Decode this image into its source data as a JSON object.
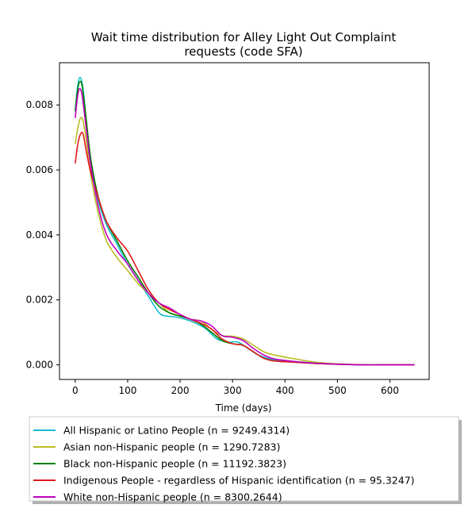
{
  "chart_data": {
    "type": "line",
    "title_lines": [
      "Wait time distribution  for Alley Light Out Complaint",
      "requests (code SFA)"
    ],
    "xlabel": "Time (days)",
    "ylabel": "",
    "xlim": [
      -30,
      675
    ],
    "ylim": [
      -0.00045,
      0.0093
    ],
    "x_ticks": [
      0,
      100,
      200,
      300,
      400,
      500,
      600
    ],
    "x_tick_labels": [
      "0",
      "100",
      "200",
      "300",
      "400",
      "500",
      "600"
    ],
    "y_ticks": [
      0.0,
      0.002,
      0.004,
      0.006,
      0.008
    ],
    "y_tick_labels": [
      "0.000",
      "0.002",
      "0.004",
      "0.006",
      "0.008"
    ],
    "grid": false,
    "legend_position": "below plot",
    "series": [
      {
        "name": "All Hispanic or Latino People (n = 9249.4314)",
        "color": "#17becf",
        "points": [
          [
            0,
            0.0078
          ],
          [
            4,
            0.0085
          ],
          [
            9,
            0.00885
          ],
          [
            15,
            0.0085
          ],
          [
            22,
            0.0073
          ],
          [
            30,
            0.0062
          ],
          [
            45,
            0.005
          ],
          [
            60,
            0.0043
          ],
          [
            80,
            0.0037
          ],
          [
            100,
            0.0031
          ],
          [
            120,
            0.0026
          ],
          [
            140,
            0.0021
          ],
          [
            160,
            0.0016
          ],
          [
            175,
            0.0015
          ],
          [
            190,
            0.00148
          ],
          [
            210,
            0.0014
          ],
          [
            230,
            0.00128
          ],
          [
            250,
            0.0011
          ],
          [
            270,
            0.0008
          ],
          [
            290,
            0.0007
          ],
          [
            310,
            0.0007
          ],
          [
            330,
            0.0005
          ],
          [
            350,
            0.0003
          ],
          [
            380,
            0.00015
          ],
          [
            420,
            0.0001
          ],
          [
            460,
            5e-05
          ],
          [
            500,
            2e-05
          ],
          [
            550,
            0.0
          ],
          [
            600,
            0.0
          ],
          [
            647,
            0.0
          ]
        ]
      },
      {
        "name": "Asian non-Hispanic people (n = 1290.7283)",
        "color": "#bcbd22",
        "points": [
          [
            0,
            0.0068
          ],
          [
            5,
            0.0073
          ],
          [
            10,
            0.0076
          ],
          [
            15,
            0.0075
          ],
          [
            22,
            0.0068
          ],
          [
            30,
            0.0058
          ],
          [
            45,
            0.0046
          ],
          [
            60,
            0.0038
          ],
          [
            80,
            0.0033
          ],
          [
            100,
            0.0029
          ],
          [
            120,
            0.0025
          ],
          [
            140,
            0.0022
          ],
          [
            160,
            0.0019
          ],
          [
            180,
            0.0016
          ],
          [
            200,
            0.0015
          ],
          [
            220,
            0.0014
          ],
          [
            240,
            0.00135
          ],
          [
            260,
            0.0011
          ],
          [
            280,
            0.0009
          ],
          [
            300,
            0.00088
          ],
          [
            320,
            0.0008
          ],
          [
            340,
            0.0006
          ],
          [
            360,
            0.0004
          ],
          [
            380,
            0.0003
          ],
          [
            420,
            0.00018
          ],
          [
            460,
            8e-05
          ],
          [
            500,
            3e-05
          ],
          [
            550,
            0.0
          ],
          [
            600,
            0.0
          ],
          [
            647,
            0.0
          ]
        ]
      },
      {
        "name": "Black non-Hispanic people (n = 11192.3823)",
        "color": "#008000",
        "points": [
          [
            0,
            0.0078
          ],
          [
            4,
            0.0084
          ],
          [
            8,
            0.0087
          ],
          [
            13,
            0.0086
          ],
          [
            20,
            0.0077
          ],
          [
            30,
            0.0063
          ],
          [
            45,
            0.0051
          ],
          [
            60,
            0.0044
          ],
          [
            80,
            0.0038
          ],
          [
            100,
            0.0032
          ],
          [
            120,
            0.0027
          ],
          [
            140,
            0.0022
          ],
          [
            160,
            0.0018
          ],
          [
            180,
            0.0016
          ],
          [
            200,
            0.0015
          ],
          [
            220,
            0.0014
          ],
          [
            240,
            0.00125
          ],
          [
            260,
            0.001
          ],
          [
            280,
            0.00075
          ],
          [
            300,
            0.00065
          ],
          [
            320,
            0.0006
          ],
          [
            340,
            0.0004
          ],
          [
            360,
            0.0002
          ],
          [
            380,
            0.00012
          ],
          [
            420,
            8e-05
          ],
          [
            460,
            4e-05
          ],
          [
            500,
            2e-05
          ],
          [
            550,
            0.0
          ],
          [
            600,
            0.0
          ],
          [
            647,
            0.0
          ]
        ]
      },
      {
        "name": "Indigenous People - regardless of Hispanic identification (n = 95.3247)",
        "color": "#e31a1c",
        "points": [
          [
            0,
            0.0062
          ],
          [
            5,
            0.0068
          ],
          [
            10,
            0.0071
          ],
          [
            15,
            0.0071
          ],
          [
            22,
            0.0065
          ],
          [
            30,
            0.0059
          ],
          [
            45,
            0.0051
          ],
          [
            60,
            0.0044
          ],
          [
            80,
            0.0039
          ],
          [
            100,
            0.0035
          ],
          [
            120,
            0.0029
          ],
          [
            140,
            0.0023
          ],
          [
            160,
            0.0019
          ],
          [
            180,
            0.0017
          ],
          [
            200,
            0.00155
          ],
          [
            220,
            0.0014
          ],
          [
            240,
            0.00128
          ],
          [
            260,
            0.0011
          ],
          [
            280,
            0.0008
          ],
          [
            300,
            0.00065
          ],
          [
            320,
            0.0006
          ],
          [
            340,
            0.0004
          ],
          [
            360,
            0.0002
          ],
          [
            380,
            0.00012
          ],
          [
            420,
            8e-05
          ],
          [
            460,
            4e-05
          ],
          [
            500,
            2e-05
          ],
          [
            550,
            0.0
          ],
          [
            600,
            0.0
          ],
          [
            647,
            0.0
          ]
        ]
      },
      {
        "name": "White non-Hispanic people (n = 8300.2644)",
        "color": "#bf00bf",
        "points": [
          [
            0,
            0.0076
          ],
          [
            4,
            0.0082
          ],
          [
            8,
            0.0085
          ],
          [
            13,
            0.0083
          ],
          [
            20,
            0.0074
          ],
          [
            30,
            0.0061
          ],
          [
            45,
            0.0048
          ],
          [
            60,
            0.004
          ],
          [
            80,
            0.0035
          ],
          [
            100,
            0.0031
          ],
          [
            120,
            0.0026
          ],
          [
            140,
            0.0022
          ],
          [
            160,
            0.0019
          ],
          [
            180,
            0.00175
          ],
          [
            200,
            0.00155
          ],
          [
            220,
            0.0014
          ],
          [
            240,
            0.00135
          ],
          [
            260,
            0.0012
          ],
          [
            280,
            0.0009
          ],
          [
            300,
            0.00085
          ],
          [
            320,
            0.00075
          ],
          [
            340,
            0.0005
          ],
          [
            360,
            0.0003
          ],
          [
            380,
            0.00018
          ],
          [
            420,
            0.0001
          ],
          [
            460,
            5e-05
          ],
          [
            500,
            2e-05
          ],
          [
            550,
            0.0
          ],
          [
            600,
            0.0
          ],
          [
            647,
            0.0
          ]
        ]
      }
    ]
  }
}
